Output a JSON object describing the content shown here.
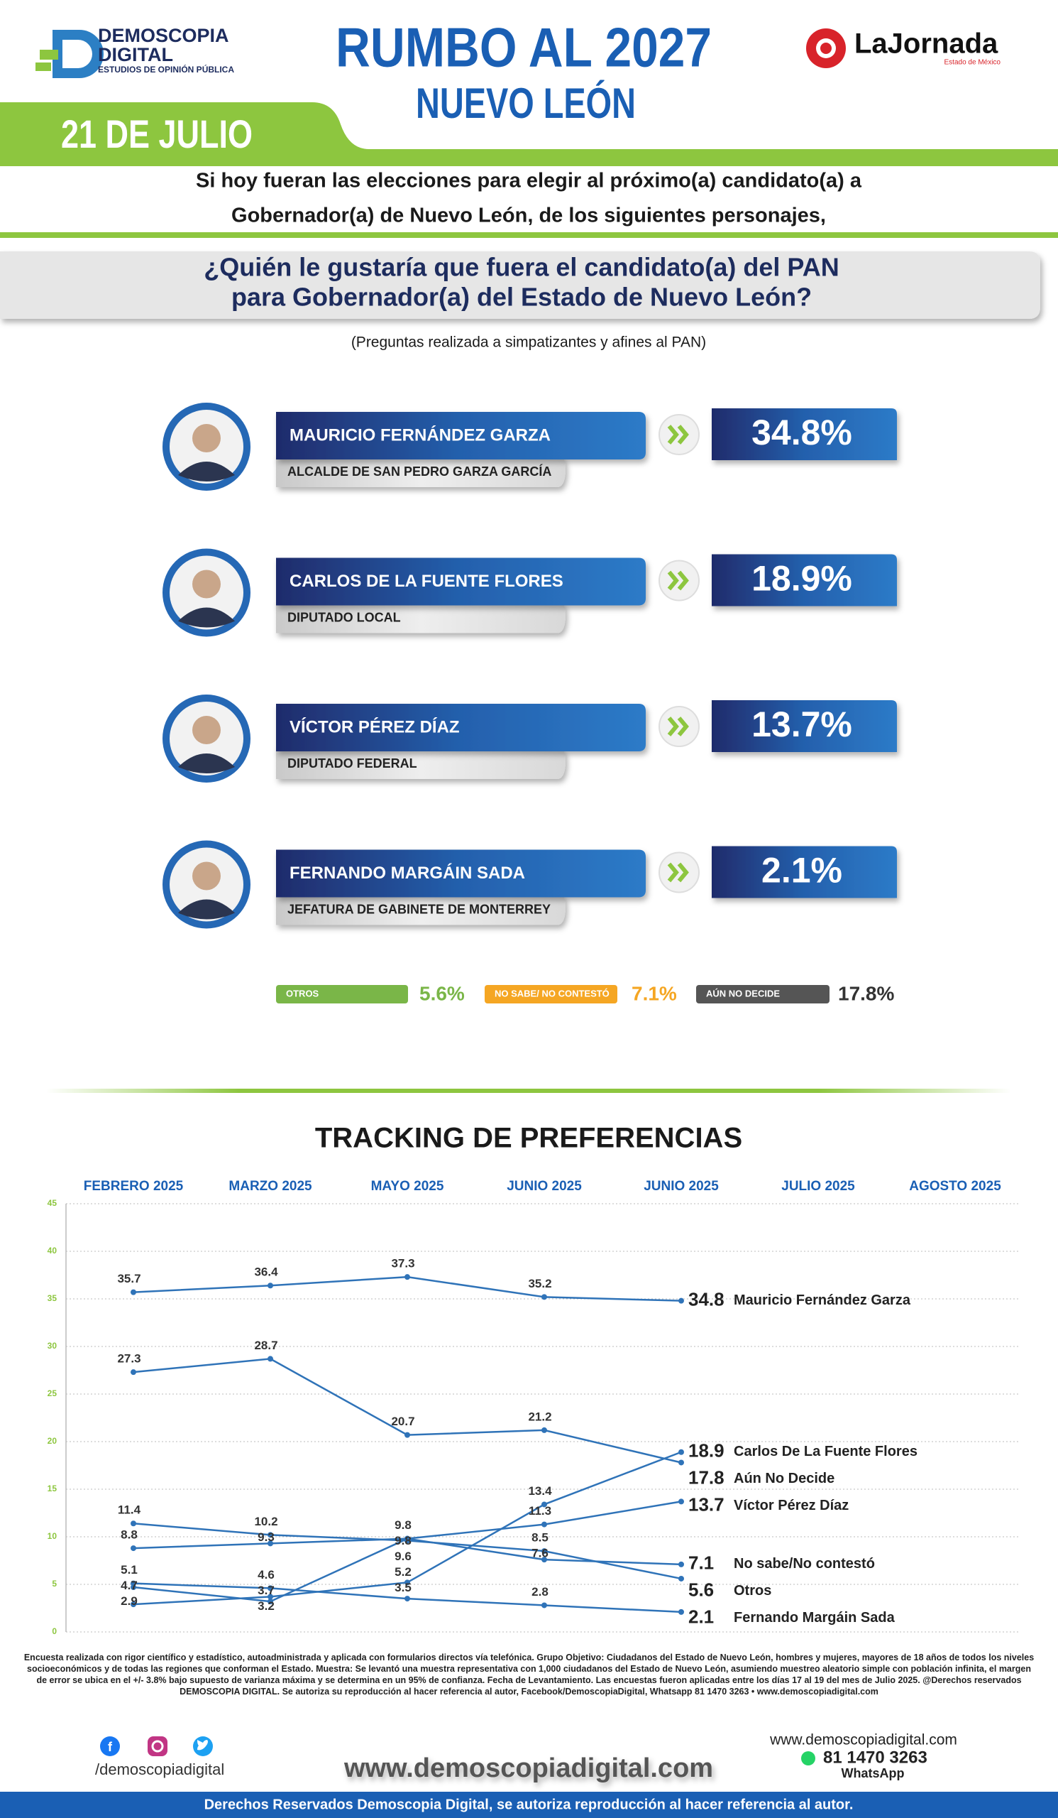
{
  "header": {
    "logo_name": "DEMOSCOPIA",
    "logo_name2": "DIGITAL",
    "logo_tagline": "ESTUDIOS DE OPINIÓN PÚBLICA",
    "title": "RUMBO AL 2027",
    "subtitle": "NUEVO LEÓN",
    "date": "21 DE JULIO",
    "partner": "LaJornada",
    "partner_tagline": "Estado de México"
  },
  "intro": [
    "Si hoy fueran las elecciones para elegir al próximo(a) candidato(a) a",
    "Gobernador(a) de Nuevo León, de los siguientes personajes,"
  ],
  "question": [
    "¿Quién le gustaría que fuera el candidato(a) del PAN",
    "para Gobernador(a) del Estado de Nuevo León?"
  ],
  "note": "(Preguntas realizada a simpatizantes y afines al PAN)",
  "candidates": [
    {
      "name": "MAURICIO FERNÁNDEZ GARZA",
      "role": "ALCALDE DE SAN PEDRO GARZA GARCÍA",
      "pct": "34.8%"
    },
    {
      "name": "CARLOS DE LA FUENTE FLORES",
      "role": "DIPUTADO LOCAL",
      "pct": "18.9%"
    },
    {
      "name": "VÍCTOR PÉREZ DÍAZ",
      "role": "DIPUTADO FEDERAL",
      "pct": "13.7%"
    },
    {
      "name": "FERNANDO MARGÁIN SADA",
      "role": "JEFATURA DE GABINETE DE MONTERREY",
      "pct": "2.1%"
    }
  ],
  "others": [
    {
      "label": "OTROS",
      "pct": "5.6%",
      "color": "#7ab648"
    },
    {
      "label": "NO SABE/ NO CONTESTÓ",
      "pct": "7.1%",
      "color": "#f5a623"
    },
    {
      "label": "AÚN NO DECIDE",
      "pct": "17.8%",
      "color": "#555555"
    }
  ],
  "chart_data": {
    "type": "line",
    "title": "TRACKING DE PREFERENCIAS",
    "categories": [
      "FEBRERO 2025",
      "MARZO 2025",
      "MAYO 2025",
      "JUNIO 2025",
      "JUNIO 2025",
      "JULIO 2025",
      "AGOSTO 2025"
    ],
    "ylim": [
      0,
      45
    ],
    "yticks": [
      0,
      5,
      10,
      15,
      20,
      25,
      30,
      35,
      40,
      45
    ],
    "grid": true,
    "series": [
      {
        "name": "Mauricio Fernández Garza",
        "color": "#2f73b8",
        "values": [
          35.7,
          36.4,
          37.3,
          35.2,
          34.8,
          null,
          null
        ]
      },
      {
        "name": "Carlos De La Fuente Flores",
        "color": "#2f73b8",
        "values": [
          2.9,
          3.7,
          5.2,
          13.4,
          18.9,
          null,
          null
        ]
      },
      {
        "name": "Aún No Decide",
        "color": "#2f73b8",
        "values": [
          27.3,
          28.7,
          20.7,
          21.2,
          17.8,
          null,
          null
        ]
      },
      {
        "name": "Víctor Pérez Díaz",
        "color": "#2f73b8",
        "values": [
          8.8,
          9.3,
          9.8,
          11.3,
          13.7,
          null,
          null
        ]
      },
      {
        "name": "No sabe/No contestó",
        "color": "#2f73b8",
        "values": [
          4.7,
          3.2,
          9.8,
          7.6,
          7.1,
          null,
          null
        ]
      },
      {
        "name": "Otros",
        "color": "#2f73b8",
        "values": [
          11.4,
          10.2,
          9.6,
          8.5,
          5.6,
          null,
          null
        ]
      },
      {
        "name": "Fernando Margáin Sada",
        "color": "#2f73b8",
        "values": [
          5.1,
          4.6,
          3.5,
          2.8,
          2.1,
          null,
          null
        ]
      }
    ]
  },
  "methodology": "Encuesta realizada con rigor científico y estadístico, autoadministrada y aplicada con formularios directos vía telefónica. Grupo Objetivo: Ciudadanos del Estado de Nuevo León, hombres y mujeres, mayores de 18 años de todos los niveles socioeconómicos y de todas las regiones que conforman el Estado. Muestra: Se levantó una muestra representativa con 1,000 ciudadanos del Estado de Nuevo León, asumiendo muestreo aleatorio simple con población infinita, el margen de error se ubica en el +/- 3.8% bajo supuesto de varianza máxima y se determina en un 95% de confianza. Fecha de Levantamiento. Las encuestas fueron aplicadas entre los días 17 al 19 del mes de Julio 2025. @Derechos reservados DEMOSCOPIA DIGITAL. Se autoriza su reproducción al hacer referencia al autor, Facebook/DemoscopiaDigital, Whatsapp 81 1470 3263 • www.demoscopiadigital.com",
  "footer": {
    "social": "/demoscopiadigital",
    "site": "www.demoscopiadigital.com",
    "site_small": "www.demoscopiadigital.com",
    "phone": "81 1470 3263",
    "whatsapp": "WhatsApp",
    "rights": "Derechos Reservados Demoscopia Digital, se autoriza reproducción al hacer referencia al autor."
  }
}
